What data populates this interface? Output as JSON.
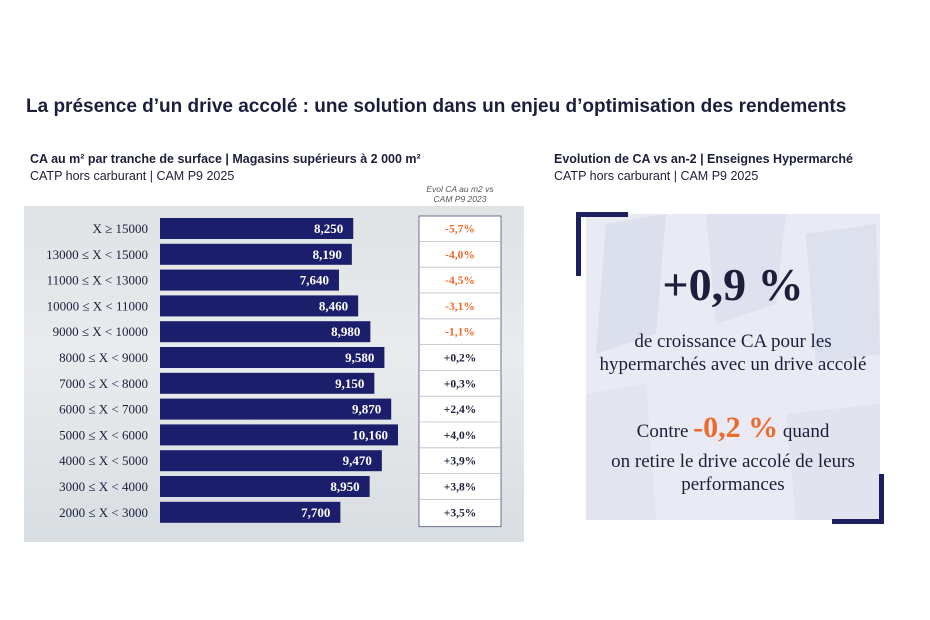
{
  "title": "La présence d’un drive accolé : une solution dans un enjeu d’optimisation des rendements",
  "left_panel": {
    "heading": "CA au m² par tranche de surface | Magasins supérieurs à 2 000 m²",
    "subheading": "CATP hors carburant | CAM P9 2025",
    "evol_header_line1": "Evol CA au m2 vs",
    "evol_header_line2": "CAM P9 2023"
  },
  "right_panel": {
    "heading": "Evolution de CA vs an-2 | Enseignes Hypermarché",
    "subheading": "CATP hors carburant | CAM P9 2025",
    "big_value": "+0,9 %",
    "description": "de croissance CA pour les hypermarchés avec un drive accolé",
    "contre_prefix": "Contre",
    "contre_value": "-0,2 %",
    "contre_suffix": "quand",
    "description2": "on retire le drive accolé de leurs performances"
  },
  "colors": {
    "bar": "#1b1f6b",
    "negative": "#ee6a2c",
    "positive": "#1b1f3b",
    "accent": "#ee6a2c"
  },
  "chart_data": {
    "type": "bar",
    "orientation": "horizontal",
    "categories": [
      "X ≥ 15000",
      "13000 ≤ X < 15000",
      "11000 ≤ X < 13000",
      "10000 ≤ X < 11000",
      "9000 ≤ X < 10000",
      "8000 ≤ X < 9000",
      "7000 ≤ X < 8000",
      "6000 ≤ X < 7000",
      "5000 ≤ X < 6000",
      "4000 ≤ X < 5000",
      "3000 ≤ X < 4000",
      "2000 ≤ X < 3000"
    ],
    "values": [
      8250,
      8190,
      7640,
      8460,
      8980,
      9580,
      9150,
      9870,
      10160,
      9470,
      8950,
      7700
    ],
    "value_labels": [
      "8,250",
      "8,190",
      "7,640",
      "8,460",
      "8,980",
      "9,580",
      "9,150",
      "9,870",
      "10,160",
      "9,470",
      "8,950",
      "7,700"
    ],
    "evolution": [
      -5.7,
      -4.0,
      -4.5,
      -3.1,
      -1.1,
      0.2,
      0.3,
      2.4,
      4.0,
      3.9,
      3.8,
      3.5
    ],
    "evolution_labels": [
      "-5,7%",
      "-4,0%",
      "-4,5%",
      "-3,1%",
      "-1,1%",
      "+0,2%",
      "+0,3%",
      "+2,4%",
      "+4,0%",
      "+3,9%",
      "+3,8%",
      "+3,5%"
    ],
    "xlim": [
      0,
      10160
    ],
    "title": "CA au m² par tranche de surface | Magasins supérieurs à 2 000 m²",
    "xlabel": "",
    "ylabel": ""
  }
}
